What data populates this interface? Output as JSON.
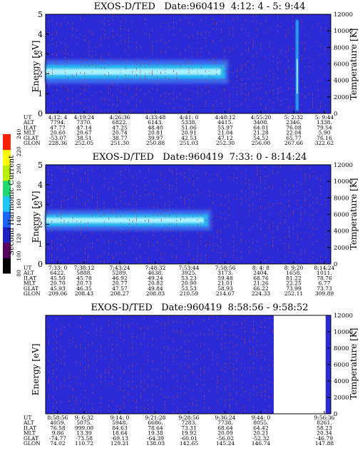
{
  "palette": {
    "background": "#2a2ad6",
    "band_outer": "#3a6cf0",
    "band_mid": "#28b4f0",
    "band_core": "#a8f2ff",
    "noise_red": "#b84040",
    "outline": "#000000"
  },
  "colorbar": {
    "label": "Second Harmonic Current",
    "ticks": [
      "80",
      "100",
      "120",
      "140",
      "160",
      "180",
      "200",
      "220",
      "240"
    ],
    "colors": [
      "#000000",
      "#5a0060",
      "#2020c0",
      "#1e64ff",
      "#1ec8ff",
      "#20d870",
      "#b8f000",
      "#ffff00",
      "#ff2000"
    ]
  },
  "chart_data": [
    {
      "type": "heatmap",
      "title": "EXOS-D/TED   Date:960419  4:12: 4 - 5: 9:44",
      "ylabel": "Energy [eV]",
      "y2label": "Temperature [K]",
      "ylim": [
        0,
        5
      ],
      "y2lim": [
        0,
        12000
      ],
      "yticks": [
        "0",
        "1",
        "2",
        "3",
        "4",
        "5"
      ],
      "y2ticks": [
        "0",
        "2000",
        "4000",
        "6000",
        "8000",
        "10000",
        "12000"
      ],
      "band": {
        "x_end": 0.64,
        "center_ev": 2.1,
        "half_width_ev": 0.35
      },
      "bright_streaks": [
        0.882
      ],
      "annotation_rows": [
        {
          "label": "UT",
          "values": [
            "4:12: 4",
            "4:19:24",
            "4:26:36",
            "4:33:48",
            "4:41: 0",
            "4:48:12",
            "4:55:20",
            "5: 2:32",
            "5: 9:44"
          ]
        },
        {
          "label": "ALT",
          "values": [
            "7794.",
            "7370.",
            "6822.",
            "6143.",
            "5338.",
            "4415.",
            "3408.",
            "2346.",
            "1338."
          ]
        },
        {
          "label": "ILAT",
          "values": [
            "47.77",
            "47.14",
            "47.25",
            "48.40",
            "51.06",
            "55.97",
            "64.01",
            "76.08",
            "79.54"
          ]
        },
        {
          "label": "MLT",
          "values": [
            "20.60",
            "20.67",
            "20.74",
            "20.81",
            "20.91",
            "21.04",
            "21.28",
            "22.04",
            "5.90"
          ]
        },
        {
          "label": "GLAT",
          "values": [
            "-53.07",
            "38.51",
            "38.77",
            "39.97",
            "42.53",
            "47.12",
            "54.52",
            "65.77",
            "76.16"
          ]
        },
        {
          "label": "GLON",
          "values": [
            "228.36",
            "252.05",
            "251.30",
            "250.88",
            "251.03",
            "252.30",
            "256.00",
            "267.66",
            "322.62"
          ]
        }
      ]
    },
    {
      "type": "heatmap",
      "title": "EXOS-D/TED   Date:960419  7:33: 0 - 8:14:24",
      "ylabel": "Energy [eV]",
      "y2label": "Temperature [K]",
      "ylim": [
        0,
        5
      ],
      "y2lim": [
        0,
        12000
      ],
      "yticks": [
        "0",
        "1",
        "2",
        "3",
        "4",
        "5"
      ],
      "y2ticks": [
        "0",
        "2000",
        "4000",
        "6000",
        "8000",
        "10000",
        "12000"
      ],
      "band": {
        "x_end": 0.58,
        "center_ev": 2.2,
        "half_width_ev": 0.3
      },
      "bright_streaks": [],
      "annotation_rows": [
        {
          "label": "UT",
          "values": [
            "7:33: 0",
            "7:38:12",
            "7:43:24",
            "7:48:32",
            "7:53:44",
            "7:58:56",
            "8: 4: 8",
            "8: 9:20",
            "8:14:24"
          ]
        },
        {
          "label": "ALT",
          "values": [
            "6422.",
            "5888.",
            "5289.",
            "4638.",
            "3925.",
            "3173.",
            "2404.",
            "1658.",
            "1011."
          ]
        },
        {
          "label": "ILAT",
          "values": [
            "45.50",
            "45.78",
            "46.92",
            "49.24",
            "53.23",
            "59.48",
            "68.76",
            "81.22",
            "78.76"
          ]
        },
        {
          "label": "MLT",
          "values": [
            "20.70",
            "20.73",
            "20.77",
            "20.82",
            "20.90",
            "21.01",
            "21.26",
            "22.25",
            "6.77"
          ]
        },
        {
          "label": "GLAT",
          "values": [
            "45.93",
            "46.35",
            "47.57",
            "49.84",
            "53.53",
            "58.93",
            "66.22",
            "73.99",
            "73.73"
          ]
        },
        {
          "label": "GLON",
          "values": [
            "209.06",
            "208.43",
            "208.27",
            "208.83",
            "210.59",
            "214.67",
            "224.33",
            "252.11",
            "309.89"
          ]
        }
      ]
    },
    {
      "type": "heatmap",
      "title": "EXOS-D/TED   Date:960419  8:58:56 - 9:58:52",
      "ylabel": "Energy [eV]",
      "y2label": "Temperature [K]",
      "ylim": [
        0,
        5
      ],
      "y2lim": [
        0,
        12000
      ],
      "yticks": [],
      "y2ticks": [
        "0",
        "2000",
        "4000",
        "6000",
        "8000",
        "10000",
        "12000"
      ],
      "band": null,
      "bright_streaks": [],
      "annotation_rows": [
        {
          "label": "UT",
          "values": [
            "8:58:56",
            "9: 6:32",
            "9:14: 0",
            "9:21:28",
            "9:28:56",
            "9:36:24",
            "9:44: 0",
            "",
            "9:56:36"
          ]
        },
        {
          "label": "ALT",
          "values": [
            "4059.",
            "5075.",
            "5948.",
            "6686.",
            "7283.",
            "7738.",
            "8055.",
            "",
            "8261."
          ]
        },
        {
          "label": "ILAT",
          "values": [
            "76.58",
            "999.00",
            "84.63",
            "78.64",
            "73.31",
            "68.64",
            "64.42",
            "",
            "58.23"
          ]
        },
        {
          "label": "MLT",
          "values": [
            "9.86",
            "13.39",
            "18.64",
            "19.38",
            "19.92",
            "20.09",
            "20.21",
            "",
            "20.34"
          ]
        },
        {
          "label": "GLAT",
          "values": [
            "-74.77",
            "-73.58",
            "-69.13",
            "-64.39",
            "-60.01",
            "-56.02",
            "-52.32",
            "",
            "-46.79"
          ]
        },
        {
          "label": "GLON",
          "values": [
            "74.02",
            "110.72",
            "129.21",
            "138.03",
            "142.65",
            "145.24",
            "146.74",
            "",
            "147.88"
          ]
        }
      ]
    }
  ]
}
